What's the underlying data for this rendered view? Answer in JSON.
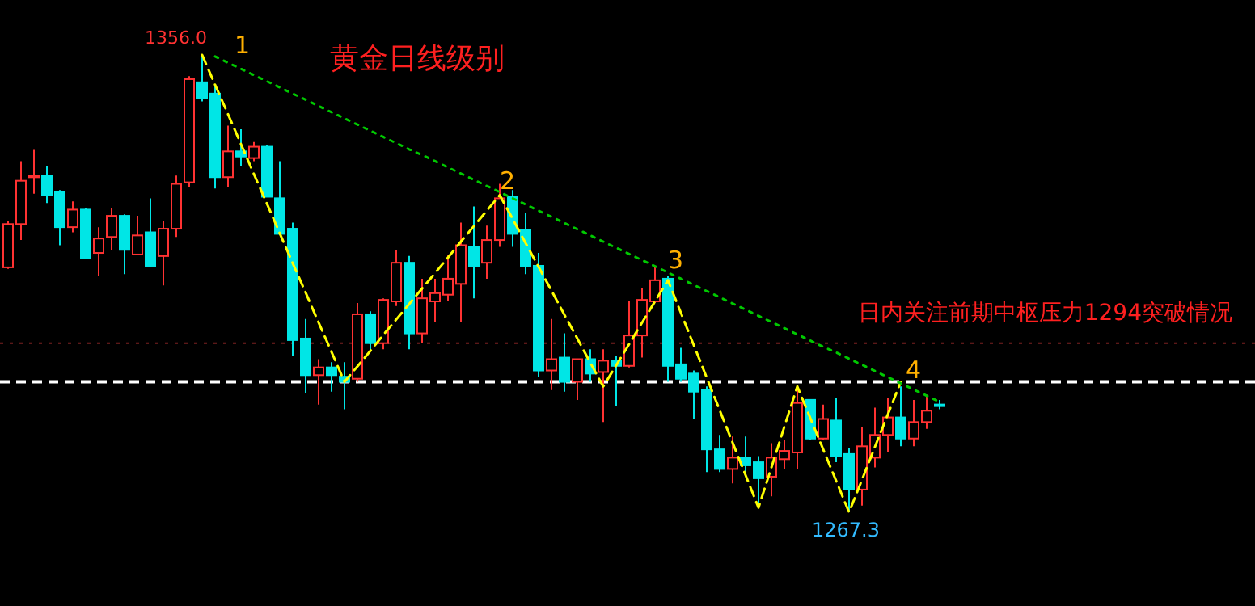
{
  "chart_data": {
    "type": "candlestick",
    "title": "黄金日线级别",
    "annotations": [
      "1356.0",
      "1",
      "2",
      "3",
      "4",
      "1267.3",
      "日内关注前期中枢压力1294突破情况"
    ],
    "categories": [
      null,
      null,
      null,
      null,
      null,
      null,
      null,
      null,
      null,
      null,
      null,
      null,
      null,
      null,
      null,
      null,
      null,
      null,
      null,
      null,
      null,
      null,
      null,
      null,
      null,
      null,
      null,
      null,
      null,
      null,
      null,
      null,
      null,
      null,
      null,
      null,
      null,
      null,
      null,
      null,
      null,
      null,
      null,
      null,
      null,
      null,
      null,
      null,
      null,
      null,
      null,
      null,
      null,
      null,
      null,
      null,
      null,
      null,
      null,
      null,
      null,
      null,
      null,
      null,
      null,
      null,
      null,
      null,
      null,
      null,
      null,
      null,
      null
    ],
    "ohlc": [
      [
        1314.8,
        1323.8,
        1314.5,
        1323.2
      ],
      [
        1323.2,
        1335.4,
        1320.1,
        1331.6
      ],
      [
        1332.3,
        1337.6,
        1329.1,
        1332.6
      ],
      [
        1332.6,
        1334.5,
        1327.3,
        1328.8
      ],
      [
        1329.5,
        1329.8,
        1319.1,
        1322.6
      ],
      [
        1322.6,
        1327.6,
        1321.6,
        1326.0
      ],
      [
        1326.0,
        1326.3,
        1316.6,
        1316.6
      ],
      [
        1317.6,
        1322.6,
        1313.2,
        1320.4
      ],
      [
        1320.7,
        1326.3,
        1318.2,
        1324.8
      ],
      [
        1324.8,
        1325.1,
        1313.5,
        1318.2
      ],
      [
        1317.3,
        1324.8,
        1317.3,
        1321.0
      ],
      [
        1321.6,
        1328.2,
        1314.8,
        1315.1
      ],
      [
        1317.0,
        1323.8,
        1311.3,
        1322.3
      ],
      [
        1322.3,
        1332.6,
        1320.7,
        1331.0
      ],
      [
        1331.3,
        1351.9,
        1330.4,
        1351.3
      ],
      [
        1350.7,
        1356.0,
        1347.0,
        1347.6
      ],
      [
        1348.5,
        1350.1,
        1330.1,
        1332.3
      ],
      [
        1332.3,
        1342.3,
        1330.4,
        1337.3
      ],
      [
        1337.3,
        1341.6,
        1334.5,
        1336.3
      ],
      [
        1336.0,
        1339.1,
        1335.4,
        1338.2
      ],
      [
        1338.2,
        1338.5,
        1328.5,
        1328.5
      ],
      [
        1328.2,
        1335.4,
        1321.3,
        1321.3
      ],
      [
        1322.3,
        1323.5,
        1297.6,
        1300.7
      ],
      [
        1301.0,
        1304.8,
        1290.4,
        1293.9
      ],
      [
        1293.9,
        1297.0,
        1288.2,
        1295.4
      ],
      [
        1295.4,
        1296.4,
        1290.7,
        1293.9
      ],
      [
        1293.6,
        1296.4,
        1287.3,
        1292.6
      ],
      [
        1293.2,
        1307.9,
        1292.6,
        1305.7
      ],
      [
        1305.7,
        1306.3,
        1298.5,
        1300.1
      ],
      [
        1300.1,
        1308.8,
        1298.9,
        1308.5
      ],
      [
        1308.2,
        1318.2,
        1307.3,
        1315.7
      ],
      [
        1315.7,
        1317.0,
        1298.9,
        1302.0
      ],
      [
        1302.0,
        1312.6,
        1300.1,
        1308.8
      ],
      [
        1308.2,
        1312.6,
        1304.2,
        1309.8
      ],
      [
        1309.5,
        1317.3,
        1308.2,
        1312.6
      ],
      [
        1311.6,
        1323.5,
        1304.2,
        1319.1
      ],
      [
        1318.8,
        1326.6,
        1308.8,
        1315.1
      ],
      [
        1315.7,
        1322.9,
        1312.6,
        1320.1
      ],
      [
        1320.1,
        1331.0,
        1318.8,
        1328.2
      ],
      [
        1328.5,
        1329.8,
        1318.8,
        1321.3
      ],
      [
        1322.0,
        1325.4,
        1313.5,
        1315.1
      ],
      [
        1315.1,
        1317.6,
        1293.6,
        1294.8
      ],
      [
        1294.8,
        1304.8,
        1291.0,
        1297.0
      ],
      [
        1297.3,
        1302.0,
        1290.7,
        1292.6
      ],
      [
        1292.6,
        1297.0,
        1289.1,
        1297.0
      ],
      [
        1297.0,
        1298.9,
        1292.6,
        1294.2
      ],
      [
        1294.5,
        1298.9,
        1284.8,
        1296.7
      ],
      [
        1296.7,
        1297.6,
        1287.9,
        1295.7
      ],
      [
        1295.7,
        1308.2,
        1295.4,
        1301.6
      ],
      [
        1301.6,
        1310.7,
        1297.3,
        1308.5
      ],
      [
        1308.2,
        1314.8,
        1307.9,
        1312.3
      ],
      [
        1312.6,
        1313.2,
        1292.6,
        1295.7
      ],
      [
        1296.0,
        1299.2,
        1292.6,
        1293.2
      ],
      [
        1294.2,
        1294.8,
        1285.4,
        1290.7
      ],
      [
        1291.0,
        1291.7,
        1275.1,
        1279.5
      ],
      [
        1279.5,
        1282.3,
        1275.1,
        1275.7
      ],
      [
        1275.7,
        1282.0,
        1272.9,
        1277.9
      ],
      [
        1277.9,
        1282.0,
        1275.1,
        1276.4
      ],
      [
        1277.0,
        1278.2,
        1268.2,
        1273.9
      ],
      [
        1274.2,
        1280.7,
        1270.4,
        1277.9
      ],
      [
        1277.6,
        1281.3,
        1275.7,
        1279.2
      ],
      [
        1278.9,
        1291.7,
        1275.7,
        1288.5
      ],
      [
        1289.1,
        1289.1,
        1281.3,
        1281.6
      ],
      [
        1281.6,
        1288.2,
        1281.3,
        1285.4
      ],
      [
        1285.1,
        1289.4,
        1277.0,
        1278.2
      ],
      [
        1278.6,
        1279.8,
        1267.3,
        1271.7
      ],
      [
        1271.7,
        1283.9,
        1268.6,
        1280.1
      ],
      [
        1277.9,
        1287.6,
        1276.0,
        1282.3
      ],
      [
        1282.3,
        1289.4,
        1278.9,
        1285.7
      ],
      [
        1285.7,
        1291.7,
        1280.1,
        1281.6
      ],
      [
        1281.6,
        1289.1,
        1280.1,
        1284.8
      ],
      [
        1284.8,
        1290.1,
        1283.5,
        1287.0
      ],
      [
        1288.2,
        1289.1,
        1287.3,
        1288.2
      ]
    ],
    "colors": [
      "#ff3232",
      "#ff3232",
      "#ff3232",
      "#00e6e6",
      "#00e6e6",
      "#ff3232",
      "#00e6e6",
      "#ff3232",
      "#ff3232",
      "#00e6e6",
      "#ff3232",
      "#00e6e6",
      "#ff3232",
      "#ff3232",
      "#ff3232",
      "#00e6e6",
      "#00e6e6",
      "#ff3232",
      "#00e6e6",
      "#ff3232",
      "#00e6e6",
      "#00e6e6",
      "#00e6e6",
      "#00e6e6",
      "#ff3232",
      "#00e6e6",
      "#00e6e6",
      "#ff3232",
      "#00e6e6",
      "#ff3232",
      "#ff3232",
      "#00e6e6",
      "#ff3232",
      "#ff3232",
      "#ff3232",
      "#ff3232",
      "#00e6e6",
      "#ff3232",
      "#ff3232",
      "#00e6e6",
      "#00e6e6",
      "#00e6e6",
      "#ff3232",
      "#00e6e6",
      "#ff3232",
      "#00e6e6",
      "#ff3232",
      "#00e6e6",
      "#ff3232",
      "#ff3232",
      "#ff3232",
      "#00e6e6",
      "#00e6e6",
      "#00e6e6",
      "#00e6e6",
      "#00e6e6",
      "#ff3232",
      "#00e6e6",
      "#00e6e6",
      "#ff3232",
      "#ff3232",
      "#ff3232",
      "#00e6e6",
      "#ff3232",
      "#00e6e6",
      "#00e6e6",
      "#ff3232",
      "#ff3232",
      "#ff3232",
      "#00e6e6",
      "#ff3232",
      "#ff3232",
      "#00e6e6"
    ],
    "series": [
      {
        "type": "line",
        "color": "#ffff00",
        "line_style": "dashed",
        "values": [
          null,
          null,
          null,
          null,
          null,
          null,
          null,
          null,
          null,
          null,
          null,
          null,
          null,
          null,
          null,
          1356.0,
          1350.2,
          1344.5,
          1338.7,
          1332.9,
          1327.2,
          1321.4,
          1315.6,
          1309.9,
          1304.1,
          1298.4,
          1292.6,
          1295.6,
          1298.6,
          1301.7,
          1304.7,
          1307.7,
          1310.7,
          1313.7,
          1316.7,
          1319.8,
          1322.8,
          1325.8,
          1328.8,
          1324.2,
          1319.5,
          1314.9,
          1310.3,
          1305.6,
          1301.0,
          1296.3,
          1291.7,
          1295.8,
          1299.9,
          1304.1,
          1308.2,
          1312.3,
          1306.0,
          1299.7,
          1293.4,
          1287.1,
          1280.8,
          1274.5,
          1268.2,
          1276.0,
          1283.9,
          1291.7,
          1285.6,
          1279.5,
          1273.4,
          1267.3,
          1273.6,
          1280.0,
          1286.3,
          1292.6,
          null,
          null,
          null
        ]
      },
      {
        "type": "line",
        "color": "#00c800",
        "line_style": "dotted",
        "values": [
          null,
          null,
          null,
          null,
          null,
          null,
          null,
          null,
          null,
          null,
          null,
          null,
          null,
          null,
          null,
          null,
          1355.7,
          1354.5,
          1353.3,
          1352.1,
          1350.9,
          1349.7,
          1348.5,
          1347.3,
          1346.1,
          1344.9,
          1343.7,
          1342.5,
          1341.3,
          1340.1,
          1338.9,
          1337.7,
          1336.6,
          1335.4,
          1334.2,
          1333.0,
          1331.8,
          1330.6,
          1329.4,
          1328.2,
          1327.0,
          1325.8,
          1324.6,
          1323.4,
          1322.2,
          1321.0,
          1319.8,
          1318.6,
          1317.4,
          1316.2,
          1315.0,
          1313.8,
          1312.6,
          1311.4,
          1310.2,
          1309.0,
          1307.8,
          1306.6,
          1305.4,
          1304.2,
          1303.0,
          1301.8,
          1300.6,
          1299.4,
          1298.3,
          1297.1,
          1295.9,
          1294.7,
          1293.5,
          1292.3,
          1291.1,
          1289.9,
          1288.7
        ]
      }
    ],
    "ref_lines": [
      {
        "axis": "y",
        "value": 1292.6,
        "color": "#ffffff",
        "line_style": "dashed"
      },
      {
        "axis": "y",
        "value": 1300.1,
        "color": "#7a2020",
        "line_style": "dotted"
      }
    ]
  }
}
